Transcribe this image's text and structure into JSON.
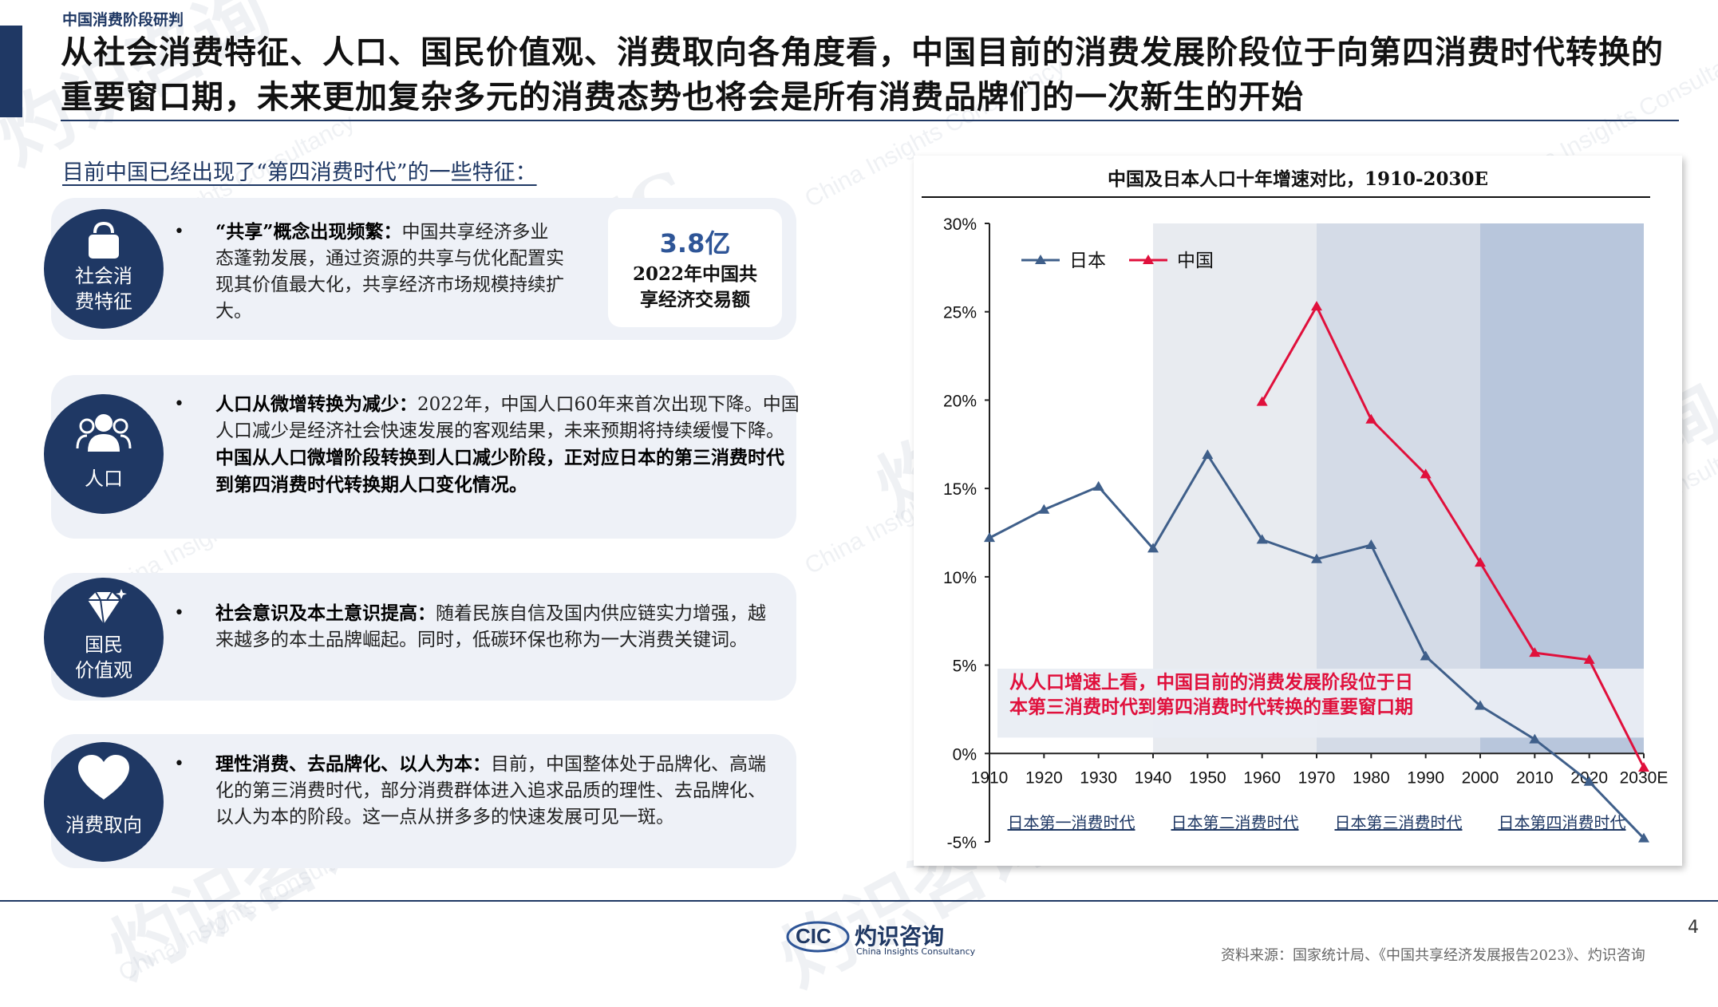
{
  "header": {
    "section_tag": "中国消费阶段研判",
    "title": "从社会消费特征、人口、国民价值观、消费取向各角度看，中国目前的消费发展阶段位于向第四消费时代转换的重要窗口期，未来更加复杂多元的消费态势也将会是所有消费品牌们的一次新生的开始"
  },
  "left": {
    "subhead": "目前中国已经出现了“第四消费时代”的一些特征：",
    "features": [
      {
        "icon": "shopping-bag-icon",
        "circle_label": "社会消费特征",
        "circle_label_lines": [
          "社会消",
          "费特征"
        ],
        "bullet": "•",
        "lead": "“共享”概念出现频繁：",
        "body": "中国共享经济多业态蓬勃发展，通过资源的共享与优化配置实现其价值最大化，共享经济市场规模持续扩大。"
      },
      {
        "icon": "people-icon",
        "circle_label": "人口",
        "bullet": "•",
        "lead": "人口从微增转换为减少：",
        "body": "2022年，中国人口60年来首次出现下降。中国人口减少是经济社会快速发展的客观结果，未来预期将持续缓慢下降。",
        "emphasis": "中国从人口微增阶段转换到人口减少阶段，正对应日本的第三消费时代到第四消费时代转换期人口变化情况。"
      },
      {
        "icon": "diamond-icon",
        "circle_label": "国民价值观",
        "circle_label_lines": [
          "国民",
          "价值观"
        ],
        "bullet": "•",
        "lead": "社会意识及本土意识提高：",
        "body": "随着民族自信及国内供应链实力增强，越来越多的本土品牌崛起。同时，低碳环保也称为一大消费关键词。"
      },
      {
        "icon": "heart-icon",
        "circle_label": "消费取向",
        "bullet": "•",
        "lead": "理性消费、去品牌化、以人为本：",
        "body": "目前，中国整体处于品牌化、高端化的第三消费时代，部分消费群体进入追求品质的理性、去品牌化、以人为本的阶段。这一点从拼多多的快速发展可见一斑。"
      }
    ],
    "stat": {
      "value": "3.8亿",
      "label": "2022年中国共享经济交易额",
      "label_lines": [
        "2022年中国共",
        "享经济交易额"
      ]
    }
  },
  "chart_data": {
    "type": "line",
    "title": "中国及日本人口十年增速对比，1910-2030E",
    "x": [
      "1910",
      "1920",
      "1930",
      "1940",
      "1950",
      "1960",
      "1970",
      "1980",
      "1990",
      "2000",
      "2010",
      "2020",
      "2030E"
    ],
    "series": [
      {
        "name": "日本",
        "color": "#3f5f8a",
        "values": [
          12.2,
          13.8,
          15.1,
          11.6,
          16.9,
          12.1,
          11.0,
          11.8,
          5.5,
          2.7,
          0.8,
          -1.6,
          -4.8
        ]
      },
      {
        "name": "中国",
        "color": "#e0103c",
        "values": [
          null,
          null,
          null,
          null,
          null,
          19.9,
          25.3,
          18.9,
          15.8,
          10.8,
          5.7,
          5.3,
          -0.8
        ]
      }
    ],
    "ylim": [
      -5,
      30
    ],
    "yticks": [
      "-5%",
      "0%",
      "5%",
      "10%",
      "15%",
      "20%",
      "25%",
      "30%"
    ],
    "ytick_values": [
      -5,
      0,
      5,
      10,
      15,
      20,
      25,
      30
    ],
    "legend": "top-left",
    "eras": [
      {
        "label": "日本第一消费时代",
        "from": "1910",
        "to": "1940",
        "shade": "#ffffff"
      },
      {
        "label": "日本第二消费时代",
        "from": "1940",
        "to": "1970",
        "shade": "#e8ebf0"
      },
      {
        "label": "日本第三消费时代",
        "from": "1970",
        "to": "2000",
        "shade": "#d4dbe7"
      },
      {
        "label": "日本第四消费时代",
        "from": "2000",
        "to": "2030E",
        "shade": "#b8c6dc"
      }
    ],
    "annotation": "从人口增速上看，中国目前的消费发展阶段位于日本第三消费时代到第四消费时代转换的重要窗口期",
    "annotation_lines": [
      "从人口增速上看，中国目前的消费发展阶段位于日",
      "本第三消费时代到第四消费时代转换的重要窗口期"
    ],
    "annotation_color": "#e0103c"
  },
  "footer": {
    "logo_mark": "CIC",
    "logo_name": "灼识咨询",
    "logo_sub": "China Insights Consultancy",
    "page_number": "4",
    "source": "资料来源：国家统计局、《中国共享经济发展报告2023》、灼识咨询"
  },
  "watermark": {
    "mark": "CIC",
    "name": "灼识咨询",
    "sub": "China Insights Consultancy"
  },
  "colors": {
    "navy": "#1f3864",
    "card": "#eef1f7",
    "japan": "#3f5f8a",
    "china": "#e0103c"
  }
}
